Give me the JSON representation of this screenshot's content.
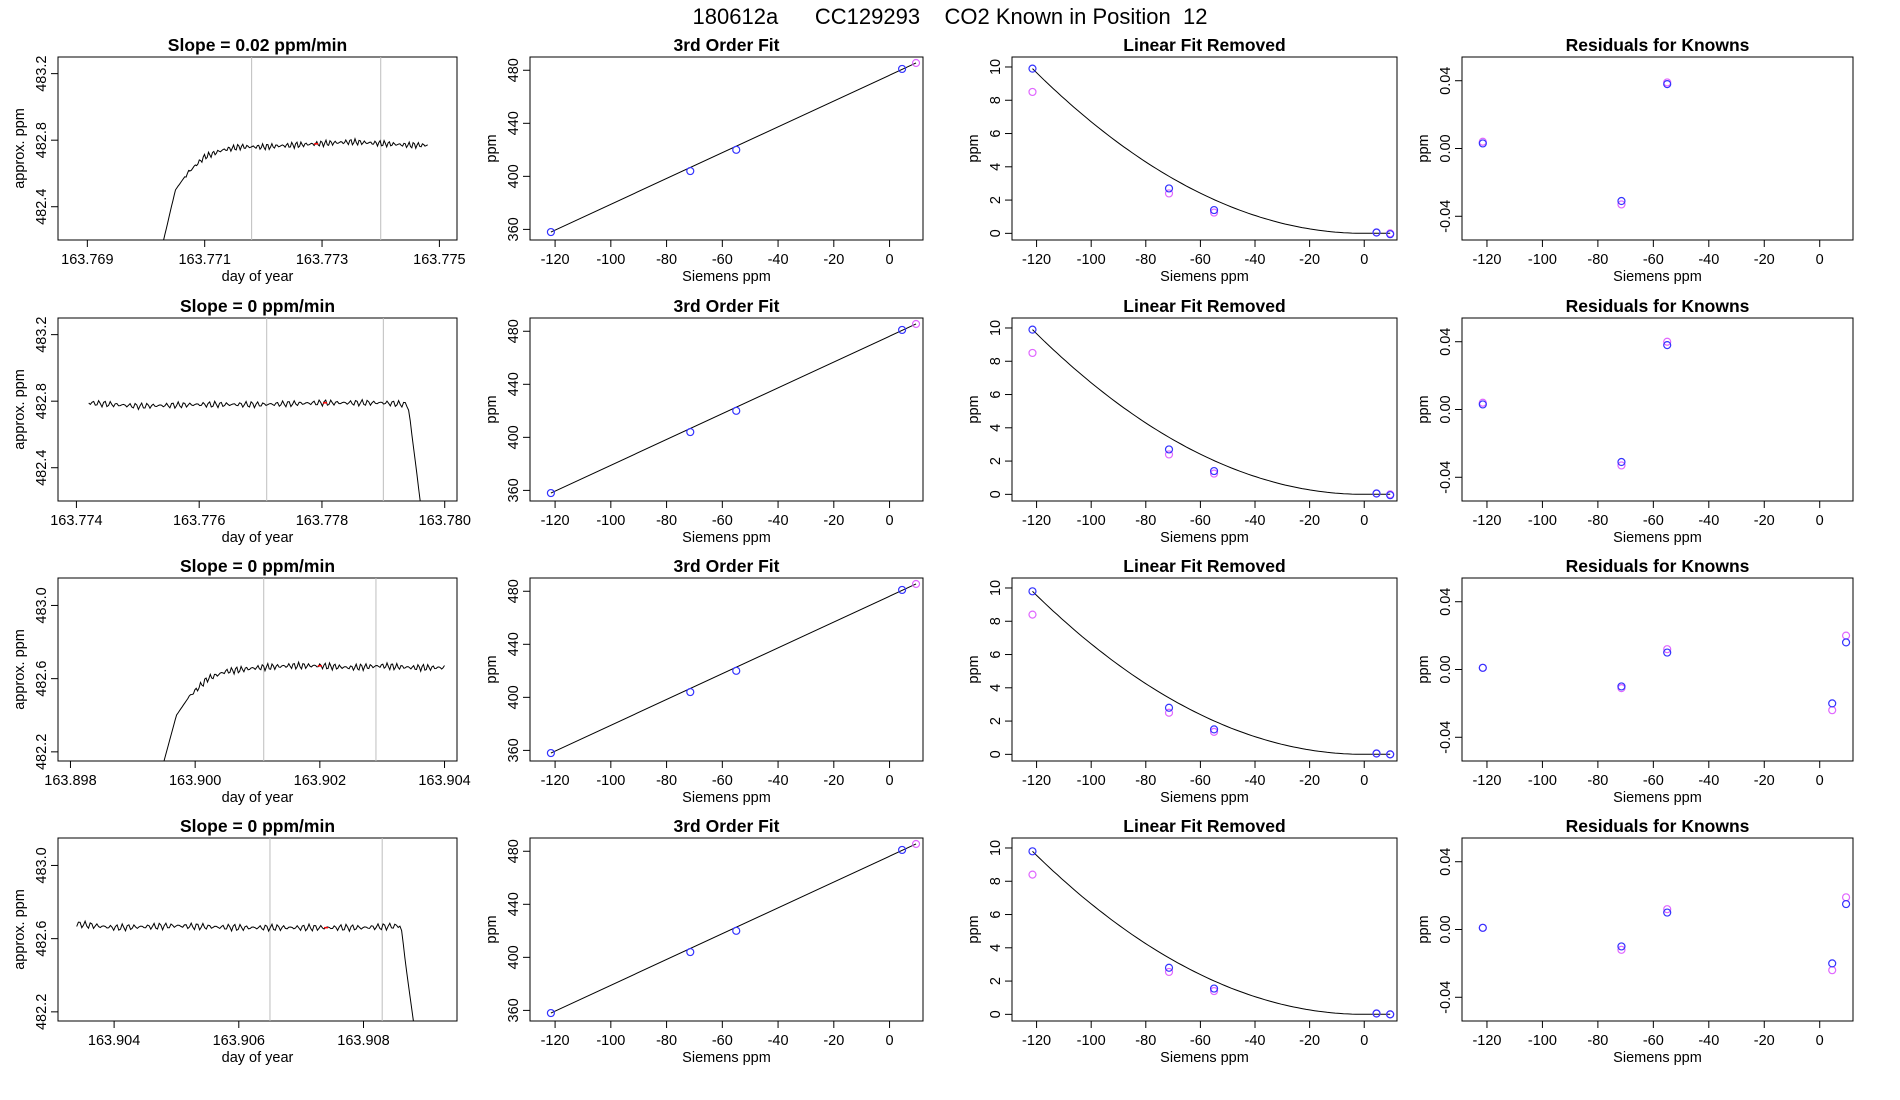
{
  "title": "180612a      CC129293    CO2 Known in Position  12",
  "colors": {
    "axis": "#000000",
    "series_a": "#3333ff",
    "series_b": "#e066ff",
    "curve": "#000000",
    "vline": "#bebebe",
    "trace_mark": "#ff0000"
  },
  "chart_data": [
    {
      "type": "line",
      "title": "Slope =  0.02  ppm/min",
      "xlabel": "day of year",
      "ylabel": "approx. ppm",
      "xlim": [
        163.7685,
        163.7753
      ],
      "ylim": [
        482.2,
        483.3
      ],
      "xticks": [
        "163.769",
        "163.771",
        "163.773",
        "163.775"
      ],
      "yticks": [
        "482.4",
        "482.8",
        "483.2"
      ],
      "vlines": [
        163.7718,
        163.774
      ],
      "x": [
        163.7703,
        163.7705,
        163.7707,
        163.771,
        163.7713,
        163.7716,
        163.772,
        163.7725,
        163.773,
        163.7735,
        163.774,
        163.7745,
        163.7748
      ],
      "y": [
        482.2,
        482.5,
        482.6,
        482.7,
        482.74,
        482.76,
        482.76,
        482.77,
        482.78,
        482.79,
        482.78,
        482.77,
        482.77
      ]
    },
    {
      "type": "line",
      "title": "3rd Order Fit",
      "xlabel": "Siemens ppm",
      "ylabel": "ppm",
      "xlim": [
        -129,
        12
      ],
      "ylim": [
        352,
        490
      ],
      "xticks": [
        "-120",
        "-100",
        "-80",
        "-60",
        "-40",
        "-20",
        "0"
      ],
      "yticks": [
        "360",
        "400",
        "440",
        "480"
      ],
      "series": [
        {
          "name": "",
          "x": [
            -121.5,
            -71.5,
            -55,
            4.5,
            9.5
          ],
          "y": [
            358,
            404,
            420,
            481,
            485.5
          ]
        }
      ]
    },
    {
      "type": "scatter",
      "title": "Linear Fit Removed",
      "xlabel": "Siemens ppm",
      "ylabel": "ppm",
      "xlim": [
        -129,
        12
      ],
      "ylim": [
        -0.4,
        10.6
      ],
      "xticks": [
        "-120",
        "-100",
        "-80",
        "-60",
        "-40",
        "-20",
        "0"
      ],
      "yticks": [
        "0",
        "2",
        "4",
        "6",
        "8",
        "10"
      ],
      "series": [
        {
          "name": "",
          "x": [
            -121.5,
            -71.5,
            -55,
            4.5,
            9.5
          ],
          "y": [
            9.9,
            2.7,
            1.4,
            0.05,
            -0.05
          ]
        },
        {
          "name": "",
          "x": [
            -121.5,
            -71.5,
            -55,
            4.5,
            9.5
          ],
          "y": [
            8.5,
            2.4,
            1.25,
            0.05,
            0
          ]
        }
      ]
    },
    {
      "type": "scatter",
      "title": "Residuals for Knowns",
      "xlabel": "Siemens ppm",
      "ylabel": "ppm",
      "xlim": [
        -129,
        12
      ],
      "ylim": [
        -0.054,
        0.054
      ],
      "xticks": [
        "-120",
        "-100",
        "-80",
        "-60",
        "-40",
        "-20",
        "0"
      ],
      "yticks": [
        "-0.04",
        "0.00",
        "0.04"
      ],
      "series": [
        {
          "name": "",
          "x": [
            -121.5,
            -71.5,
            -55
          ],
          "y": [
            0.003,
            -0.031,
            0.038
          ]
        },
        {
          "name": "",
          "x": [
            -121.5,
            -71.5,
            -55
          ],
          "y": [
            0.004,
            -0.033,
            0.039
          ]
        }
      ]
    },
    {
      "type": "line",
      "title": "Slope =  0  ppm/min",
      "xlabel": "day of year",
      "ylabel": "approx. ppm",
      "xlim": [
        163.7737,
        163.7802
      ],
      "ylim": [
        482.2,
        483.3
      ],
      "xticks": [
        "163.774",
        "163.776",
        "163.778",
        "163.780"
      ],
      "yticks": [
        "482.4",
        "482.8",
        "483.2"
      ],
      "vlines": [
        163.7771,
        163.779
      ],
      "x": [
        163.7742,
        163.775,
        163.776,
        163.777,
        163.778,
        163.779,
        163.7794,
        163.7795,
        163.7796
      ],
      "y": [
        482.79,
        482.77,
        482.78,
        482.78,
        482.79,
        482.79,
        482.78,
        482.5,
        482.2
      ]
    },
    {
      "type": "line",
      "title": "3rd Order Fit",
      "xlabel": "Siemens ppm",
      "ylabel": "ppm",
      "xlim": [
        -129,
        12
      ],
      "ylim": [
        352,
        490
      ],
      "xticks": [
        "-120",
        "-100",
        "-80",
        "-60",
        "-40",
        "-20",
        "0"
      ],
      "yticks": [
        "360",
        "400",
        "440",
        "480"
      ],
      "series": [
        {
          "name": "",
          "x": [
            -121.5,
            -71.5,
            -55,
            4.5,
            9.5
          ],
          "y": [
            358,
            404,
            420,
            481,
            485.5
          ]
        }
      ]
    },
    {
      "type": "scatter",
      "title": "Linear Fit Removed",
      "xlabel": "Siemens ppm",
      "ylabel": "ppm",
      "xlim": [
        -129,
        12
      ],
      "ylim": [
        -0.4,
        10.6
      ],
      "xticks": [
        "-120",
        "-100",
        "-80",
        "-60",
        "-40",
        "-20",
        "0"
      ],
      "yticks": [
        "0",
        "2",
        "4",
        "6",
        "8",
        "10"
      ],
      "series": [
        {
          "name": "",
          "x": [
            -121.5,
            -71.5,
            -55,
            4.5,
            9.5
          ],
          "y": [
            9.9,
            2.7,
            1.4,
            0.05,
            -0.05
          ]
        },
        {
          "name": "",
          "x": [
            -121.5,
            -71.5,
            -55,
            4.5,
            9.5
          ],
          "y": [
            8.5,
            2.4,
            1.25,
            0.05,
            0
          ]
        }
      ]
    },
    {
      "type": "scatter",
      "title": "Residuals for Knowns",
      "xlabel": "Siemens ppm",
      "ylabel": "ppm",
      "xlim": [
        -129,
        12
      ],
      "ylim": [
        -0.054,
        0.054
      ],
      "xticks": [
        "-120",
        "-100",
        "-80",
        "-60",
        "-40",
        "-20",
        "0"
      ],
      "yticks": [
        "-0.04",
        "0.00",
        "0.04"
      ],
      "series": [
        {
          "name": "",
          "x": [
            -121.5,
            -71.5,
            -55
          ],
          "y": [
            0.003,
            -0.031,
            0.038
          ]
        },
        {
          "name": "",
          "x": [
            -121.5,
            -71.5,
            -55
          ],
          "y": [
            0.004,
            -0.033,
            0.04
          ]
        }
      ]
    },
    {
      "type": "line",
      "title": "Slope =  0  ppm/min",
      "xlabel": "day of year",
      "ylabel": "approx. ppm",
      "xlim": [
        163.8978,
        163.9042
      ],
      "ylim": [
        482.15,
        483.15
      ],
      "xticks": [
        "163.898",
        "163.900",
        "163.902",
        "163.904"
      ],
      "yticks": [
        "482.2",
        "482.6",
        "483.0"
      ],
      "vlines": [
        163.9011,
        163.9029
      ],
      "x": [
        163.8995,
        163.8997,
        163.8999,
        163.9002,
        163.9005,
        163.901,
        163.9015,
        163.902,
        163.9025,
        163.903,
        163.9035,
        163.904
      ],
      "y": [
        482.15,
        482.4,
        482.5,
        482.6,
        482.64,
        482.66,
        482.67,
        482.67,
        482.66,
        482.67,
        482.66,
        482.66
      ]
    },
    {
      "type": "line",
      "title": "3rd Order Fit",
      "xlabel": "Siemens ppm",
      "ylabel": "ppm",
      "xlim": [
        -129,
        12
      ],
      "ylim": [
        352,
        490
      ],
      "xticks": [
        "-120",
        "-100",
        "-80",
        "-60",
        "-40",
        "-20",
        "0"
      ],
      "yticks": [
        "360",
        "400",
        "440",
        "480"
      ],
      "series": [
        {
          "name": "",
          "x": [
            -121.5,
            -71.5,
            -55,
            4.5,
            9.5
          ],
          "y": [
            358,
            404,
            420,
            481,
            485.5
          ]
        }
      ]
    },
    {
      "type": "scatter",
      "title": "Linear Fit Removed",
      "xlabel": "Siemens ppm",
      "ylabel": "ppm",
      "xlim": [
        -129,
        12
      ],
      "ylim": [
        -0.4,
        10.6
      ],
      "xticks": [
        "-120",
        "-100",
        "-80",
        "-60",
        "-40",
        "-20",
        "0"
      ],
      "yticks": [
        "0",
        "2",
        "4",
        "6",
        "8",
        "10"
      ],
      "series": [
        {
          "name": "",
          "x": [
            -121.5,
            -71.5,
            -55,
            4.5,
            9.5
          ],
          "y": [
            9.8,
            2.8,
            1.5,
            0.05,
            0
          ]
        },
        {
          "name": "",
          "x": [
            -121.5,
            -71.5,
            -55,
            4.5,
            9.5
          ],
          "y": [
            8.4,
            2.5,
            1.35,
            0.05,
            0
          ]
        }
      ]
    },
    {
      "type": "scatter",
      "title": "Residuals for Knowns",
      "xlabel": "Siemens ppm",
      "ylabel": "ppm",
      "xlim": [
        -129,
        12
      ],
      "ylim": [
        -0.054,
        0.054
      ],
      "xticks": [
        "-120",
        "-100",
        "-80",
        "-60",
        "-40",
        "-20",
        "0"
      ],
      "yticks": [
        "-0.04",
        "0.00",
        "0.04"
      ],
      "series": [
        {
          "name": "",
          "x": [
            -121.5,
            -71.5,
            -55,
            4.5,
            9.5
          ],
          "y": [
            0.001,
            -0.01,
            0.01,
            -0.02,
            0.016
          ]
        },
        {
          "name": "",
          "x": [
            -121.5,
            -71.5,
            -55,
            4.5,
            9.5
          ],
          "y": [
            0.001,
            -0.011,
            0.012,
            -0.024,
            0.02
          ]
        }
      ]
    },
    {
      "type": "line",
      "title": "Slope =  0  ppm/min",
      "xlabel": "day of year",
      "ylabel": "approx. ppm",
      "xlim": [
        163.9031,
        163.9095
      ],
      "ylim": [
        482.15,
        483.15
      ],
      "xticks": [
        "163.904",
        "163.906",
        "163.908"
      ],
      "yticks": [
        "482.2",
        "482.6",
        "483.0"
      ],
      "vlines": [
        163.9065,
        163.9083
      ],
      "x": [
        163.9034,
        163.904,
        163.905,
        163.906,
        163.907,
        163.908,
        163.9086,
        163.9087,
        163.9088
      ],
      "y": [
        482.68,
        482.66,
        482.67,
        482.66,
        482.66,
        482.66,
        482.67,
        482.4,
        482.15
      ]
    },
    {
      "type": "line",
      "title": "3rd Order Fit",
      "xlabel": "Siemens ppm",
      "ylabel": "ppm",
      "xlim": [
        -129,
        12
      ],
      "ylim": [
        352,
        490
      ],
      "xticks": [
        "-120",
        "-100",
        "-80",
        "-60",
        "-40",
        "-20",
        "0"
      ],
      "yticks": [
        "360",
        "400",
        "440",
        "480"
      ],
      "series": [
        {
          "name": "",
          "x": [
            -121.5,
            -71.5,
            -55,
            4.5,
            9.5
          ],
          "y": [
            358,
            404,
            420,
            481,
            485.5
          ]
        }
      ]
    },
    {
      "type": "scatter",
      "title": "Linear Fit Removed",
      "xlabel": "Siemens ppm",
      "ylabel": "ppm",
      "xlim": [
        -129,
        12
      ],
      "ylim": [
        -0.4,
        10.6
      ],
      "xticks": [
        "-120",
        "-100",
        "-80",
        "-60",
        "-40",
        "-20",
        "0"
      ],
      "yticks": [
        "0",
        "2",
        "4",
        "6",
        "8",
        "10"
      ],
      "series": [
        {
          "name": "",
          "x": [
            -121.5,
            -71.5,
            -55,
            4.5,
            9.5
          ],
          "y": [
            9.8,
            2.8,
            1.55,
            0.05,
            0
          ]
        },
        {
          "name": "",
          "x": [
            -121.5,
            -71.5,
            -55,
            4.5,
            9.5
          ],
          "y": [
            8.4,
            2.55,
            1.4,
            0.05,
            0
          ]
        }
      ]
    },
    {
      "type": "scatter",
      "title": "Residuals for Knowns",
      "xlabel": "Siemens ppm",
      "ylabel": "ppm",
      "xlim": [
        -129,
        12
      ],
      "ylim": [
        -0.054,
        0.054
      ],
      "xticks": [
        "-120",
        "-100",
        "-80",
        "-60",
        "-40",
        "-20",
        "0"
      ],
      "yticks": [
        "-0.04",
        "0.00",
        "0.04"
      ],
      "series": [
        {
          "name": "",
          "x": [
            -121.5,
            -71.5,
            -55,
            4.5,
            9.5
          ],
          "y": [
            0.001,
            -0.01,
            0.01,
            -0.02,
            0.015
          ]
        },
        {
          "name": "",
          "x": [
            -121.5,
            -71.5,
            -55,
            4.5,
            9.5
          ],
          "y": [
            0.001,
            -0.012,
            0.012,
            -0.024,
            0.019
          ]
        }
      ]
    }
  ]
}
